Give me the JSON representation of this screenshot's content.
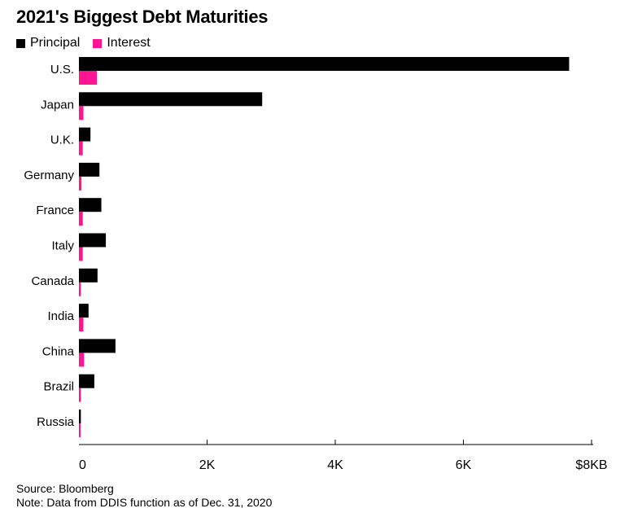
{
  "chart_data": {
    "type": "bar",
    "orientation": "horizontal",
    "title": "2021's Biggest Debt Maturities",
    "categories": [
      "U.S.",
      "Japan",
      "U.K.",
      "Germany",
      "France",
      "Italy",
      "Canada",
      "India",
      "China",
      "Brazil",
      "Russia"
    ],
    "series": [
      {
        "name": "Principal",
        "color": "#000000",
        "values": [
          7650,
          2860,
          180,
          320,
          350,
          420,
          290,
          150,
          570,
          240,
          30
        ]
      },
      {
        "name": "Interest",
        "color": "#ff1493",
        "values": [
          280,
          70,
          60,
          40,
          60,
          60,
          30,
          70,
          80,
          30,
          20
        ]
      }
    ],
    "xlim": [
      0,
      8000
    ],
    "x_ticks": [
      0,
      2000,
      4000,
      6000,
      8000
    ],
    "x_tick_labels": [
      "0",
      "2K",
      "4K",
      "6K",
      "$8KB"
    ],
    "legend_position": "top-left",
    "grid": false
  },
  "footer": {
    "source": "Source: Bloomberg",
    "note": "Note: Data from DDIS function as of Dec. 31, 2020"
  }
}
